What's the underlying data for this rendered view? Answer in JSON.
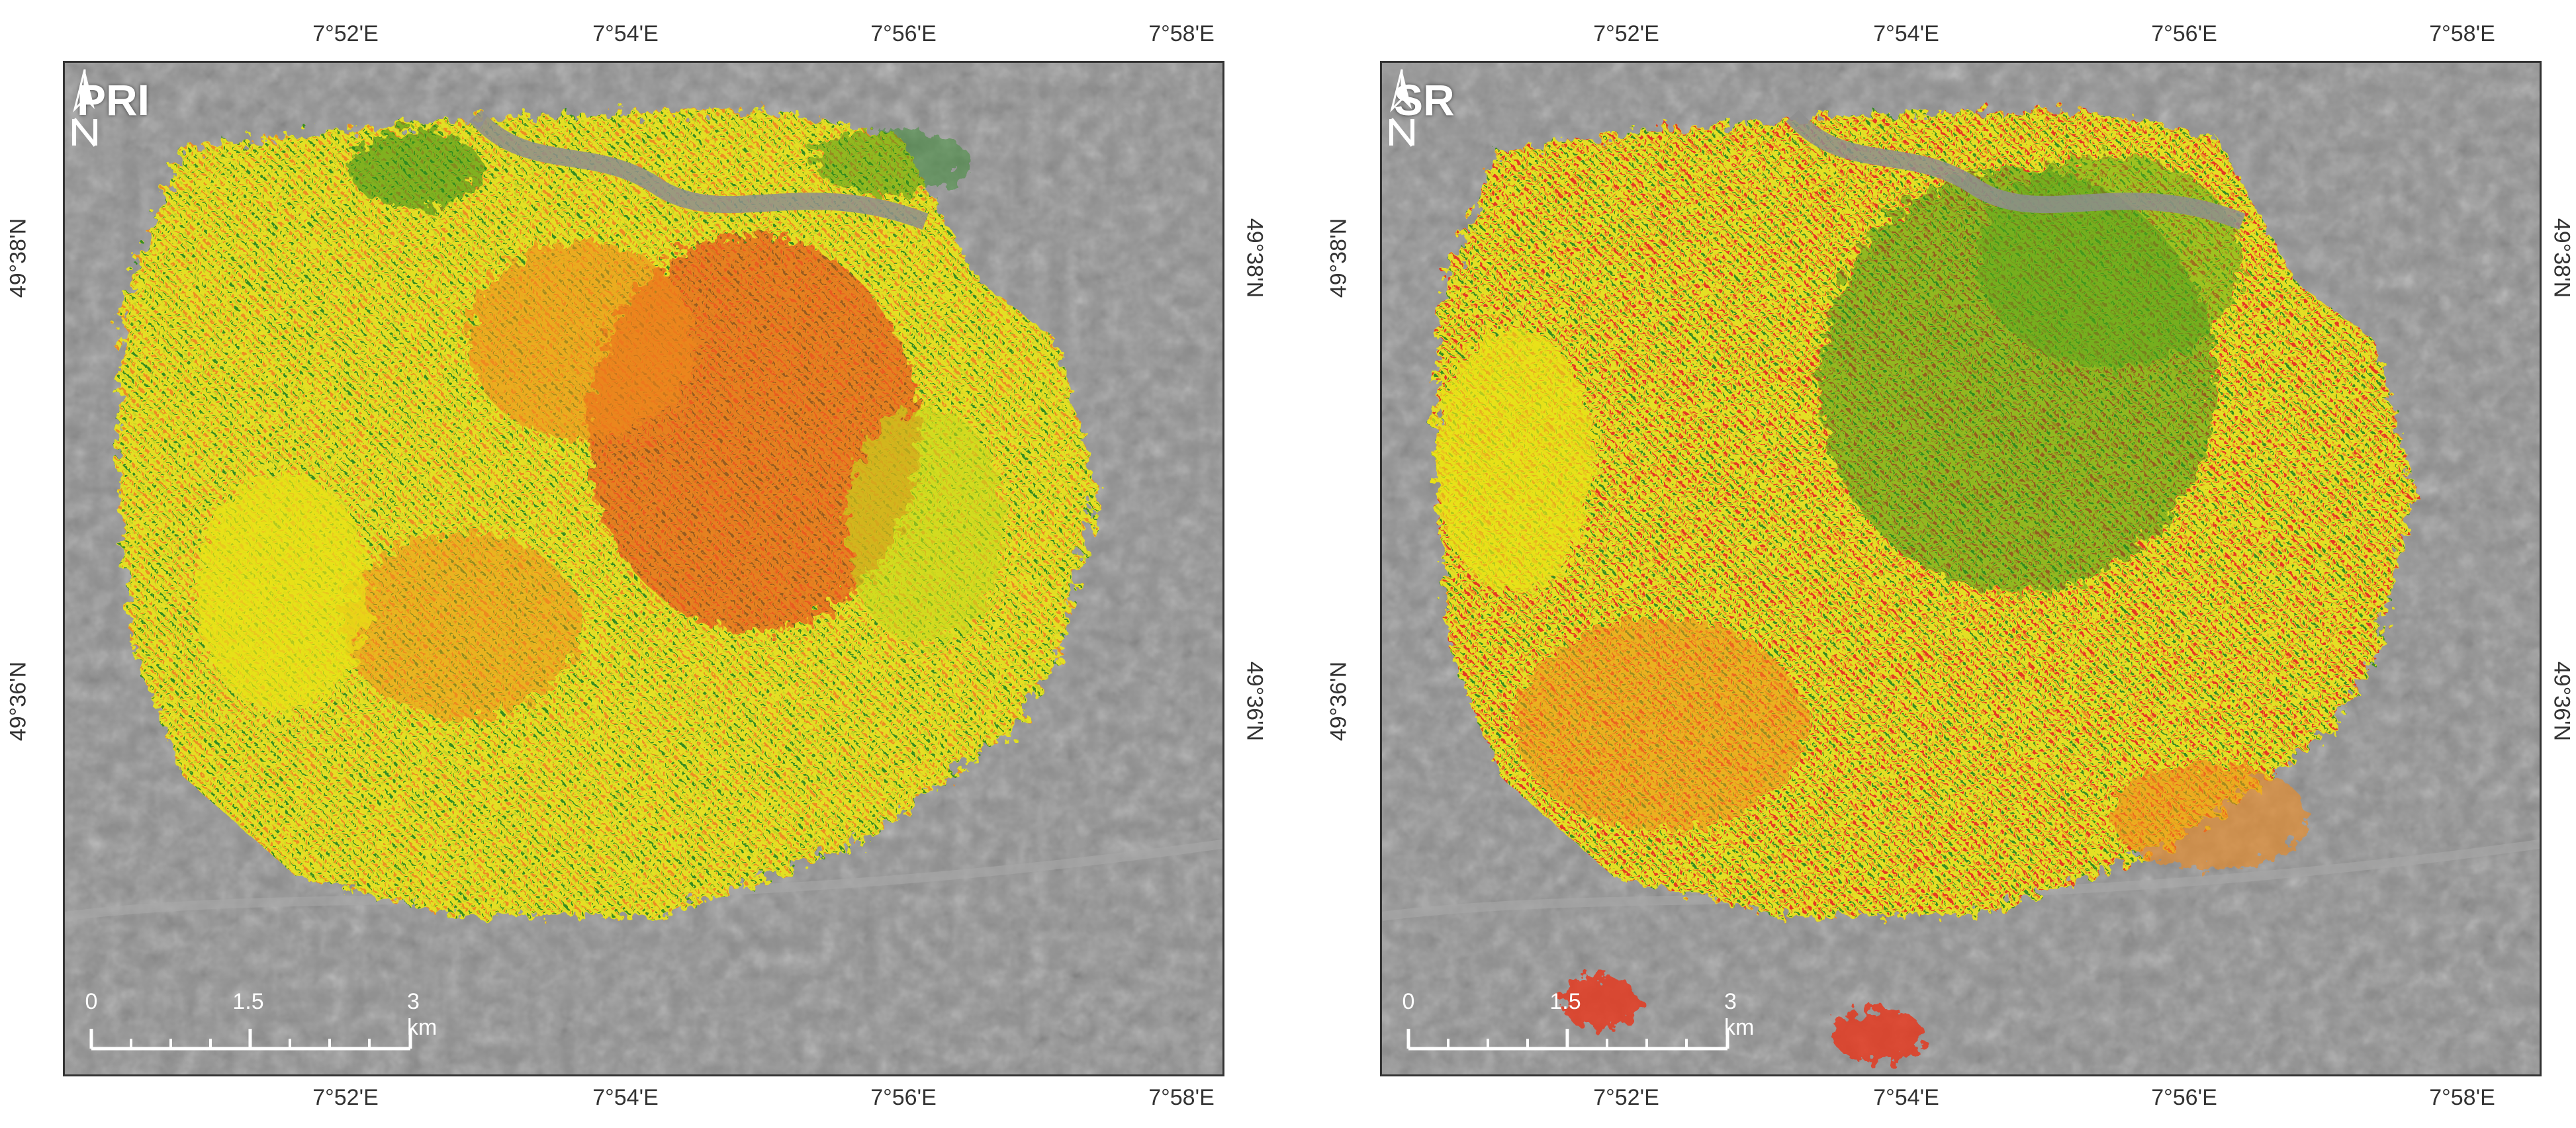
{
  "figure": {
    "panels": [
      {
        "id": "pri",
        "label": "PRI",
        "top_ticks": [
          "7°52'E",
          "7°54'E",
          "7°56'E",
          "7°58'E"
        ],
        "bottom_ticks": [
          "7°52'E",
          "7°54'E",
          "7°56'E",
          "7°58'E"
        ],
        "left_ticks": [
          "49°38'N",
          "49°36'N"
        ],
        "right_ticks": [
          "49°38'N",
          "49°36'N"
        ],
        "scale": {
          "zero": "0",
          "mid": "1.5",
          "end": "3 km"
        }
      },
      {
        "id": "sr",
        "label": "SR",
        "top_ticks": [
          "7°52'E",
          "7°54'E",
          "7°56'E",
          "7°58'E"
        ],
        "bottom_ticks": [
          "7°52'E",
          "7°54'E",
          "7°56'E",
          "7°58'E"
        ],
        "left_ticks": [
          "49°38'N",
          "49°36'N"
        ],
        "right_ticks": [
          "49°38'N",
          "49°36'N"
        ],
        "scale": {
          "zero": "0",
          "mid": "1.5",
          "end": "3 km"
        }
      }
    ],
    "colors": {
      "basemap": "#8c8c8c",
      "red": "#e8331c",
      "orange": "#f08a1c",
      "yellow": "#e8e21a",
      "green": "#2f8a1e"
    },
    "icons": {
      "north_arrow": "north-arrow-icon"
    }
  }
}
